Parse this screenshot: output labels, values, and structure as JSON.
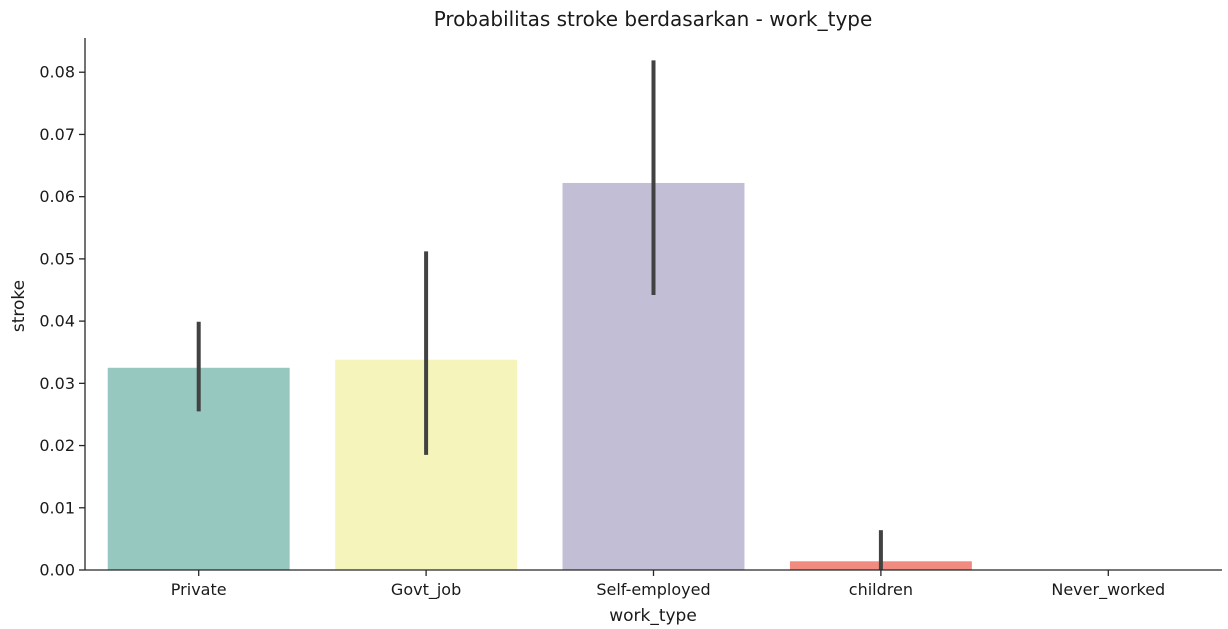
{
  "chart_data": {
    "type": "bar",
    "title": "Probabilitas stroke berdasarkan - work_type",
    "xlabel": "work_type",
    "ylabel": "stroke",
    "ylim": [
      0,
      0.0855
    ],
    "yticks": [
      "0.00",
      "0.01",
      "0.02",
      "0.03",
      "0.04",
      "0.05",
      "0.06",
      "0.07",
      "0.08"
    ],
    "categories": [
      "Private",
      "Govt_job",
      "Self-employed",
      "children",
      "Never_worked"
    ],
    "values": [
      0.0325,
      0.0338,
      0.0622,
      0.0014,
      0.0
    ],
    "error_low": [
      0.0255,
      0.0185,
      0.0442,
      0.0,
      0.0
    ],
    "error_high": [
      0.0399,
      0.0512,
      0.0819,
      0.0064,
      0.0
    ],
    "colors": [
      "#97c8c0",
      "#f5f5bb",
      "#c1bed6",
      "#f18a7f",
      "#80b0d3"
    ],
    "grid": false,
    "legend": "none"
  }
}
